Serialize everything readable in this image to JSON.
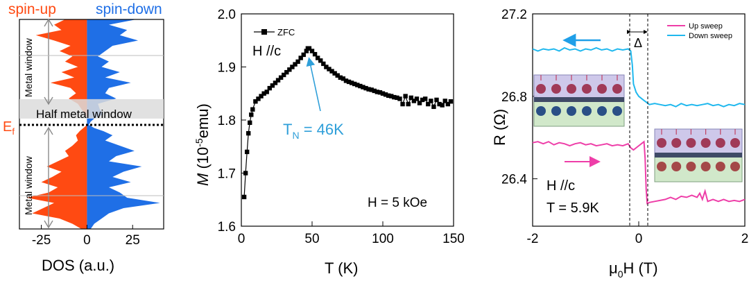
{
  "colors": {
    "spin_up": "#ff4a12",
    "spin_down": "#1f6fe6",
    "window_band": "#dcdcdc",
    "zfc_line": "#000000",
    "annotation_blue": "#2f9fd9",
    "up_sweep": "#ee3ea8",
    "down_sweep": "#1fb8ee",
    "arrow_pink": "#ee3ea8",
    "arrow_blue": "#1f9fe8"
  },
  "chart_data": [
    {
      "type": "area",
      "panel": "dos",
      "title_left": "spin-up",
      "title_right": "spin-down",
      "xlabel": "DOS (a.u.)",
      "ylabel": "",
      "xlim": [
        -37,
        42
      ],
      "xticks": [
        "-25",
        "0",
        "25"
      ],
      "xtick_values": [
        -25,
        0,
        25
      ],
      "fermi_label": "E",
      "fermi_sub": "f",
      "half_metal_label": "Half metal window",
      "metal_window_label": "Metal window",
      "energy_axis": "top = 1, bottom = -1, Fermi level at 0",
      "half_metal_window": [
        0.0,
        0.06
      ],
      "series": [
        {
          "name": "spin-up",
          "energy": [
            1.0,
            0.95,
            0.9,
            0.85,
            0.8,
            0.75,
            0.7,
            0.65,
            0.6,
            0.55,
            0.5,
            0.45,
            0.4,
            0.35,
            0.3,
            0.25,
            0.2,
            0.15,
            0.1,
            0.06,
            0.03,
            0.0,
            -0.03,
            -0.06,
            -0.1,
            -0.15,
            -0.2,
            -0.25,
            -0.3,
            -0.35,
            -0.4,
            -0.45,
            -0.5,
            -0.55,
            -0.6,
            -0.65,
            -0.7,
            -0.75,
            -0.8,
            -0.85,
            -0.9,
            -0.95,
            -1.0
          ],
          "dos": [
            -12,
            -18,
            -14,
            -28,
            -18,
            -9,
            -15,
            -8,
            -12,
            -5,
            -14,
            -7,
            -20,
            -9,
            -6,
            -10,
            -5,
            -3,
            -1,
            0,
            0,
            0,
            -2,
            -4,
            -6,
            -5,
            -8,
            -12,
            -10,
            -16,
            -22,
            -14,
            -19,
            -25,
            -16,
            -21,
            -33,
            -18,
            -24,
            -30,
            -15,
            -8,
            -3
          ]
        },
        {
          "name": "spin-down",
          "energy": [
            1.0,
            0.95,
            0.9,
            0.85,
            0.8,
            0.75,
            0.7,
            0.65,
            0.6,
            0.55,
            0.5,
            0.45,
            0.4,
            0.35,
            0.3,
            0.25,
            0.2,
            0.15,
            0.1,
            0.06,
            0.03,
            0.0,
            -0.03,
            -0.06,
            -0.1,
            -0.15,
            -0.2,
            -0.25,
            -0.3,
            -0.35,
            -0.4,
            -0.45,
            -0.5,
            -0.55,
            -0.6,
            -0.65,
            -0.7,
            -0.75,
            -0.8,
            -0.85,
            -0.9,
            -0.95,
            -1.0
          ],
          "dos": [
            27,
            12,
            22,
            18,
            28,
            14,
            10,
            6,
            12,
            8,
            18,
            10,
            24,
            12,
            10,
            16,
            6,
            7,
            9,
            4,
            2,
            1,
            4,
            9,
            14,
            10,
            18,
            26,
            16,
            12,
            30,
            20,
            14,
            24,
            12,
            18,
            22,
            40,
            20,
            12,
            8,
            4,
            2
          ]
        }
      ]
    },
    {
      "type": "line",
      "panel": "magnetization",
      "xlabel": "T (K)",
      "ylabel_italic": "M",
      "ylabel_rest": " (10",
      "ylabel_sup": "-5",
      "ylabel_end": "emu)",
      "xlim": [
        0,
        150
      ],
      "ylim": [
        1.6,
        2.0
      ],
      "xticks": [
        "0",
        "50",
        "100",
        "150"
      ],
      "xtick_values": [
        0,
        50,
        100,
        150
      ],
      "yticks": [
        "1.6",
        "1.7",
        "1.8",
        "1.9",
        "2.0"
      ],
      "ytick_values": [
        1.6,
        1.7,
        1.8,
        1.9,
        2.0
      ],
      "legend": "ZFC",
      "field_orientation": "H //c",
      "field_label": "H = 5 kOe",
      "annotation_main": "T",
      "annotation_sub": "N",
      "annotation_rest": " = 46K",
      "annotation_point": [
        47,
        1.925
      ],
      "series": [
        {
          "name": "ZFC",
          "x": [
            2,
            3,
            4,
            5,
            6,
            7,
            8,
            10,
            12,
            14,
            16,
            18,
            20,
            22,
            24,
            26,
            28,
            30,
            32,
            34,
            36,
            38,
            40,
            42,
            44,
            46,
            47,
            48,
            50,
            52,
            54,
            56,
            58,
            60,
            62,
            64,
            66,
            68,
            70,
            72,
            74,
            76,
            78,
            80,
            82,
            84,
            86,
            88,
            90,
            92,
            94,
            96,
            98,
            100,
            102,
            104,
            106,
            108,
            110,
            112,
            114,
            116,
            118,
            120,
            122,
            124,
            126,
            128,
            130,
            132,
            134,
            136,
            138,
            140,
            142,
            144,
            146,
            148
          ],
          "y": [
            1.655,
            1.7,
            1.74,
            1.775,
            1.795,
            1.81,
            1.82,
            1.835,
            1.84,
            1.845,
            1.85,
            1.853,
            1.86,
            1.865,
            1.87,
            1.875,
            1.88,
            1.885,
            1.89,
            1.895,
            1.9,
            1.905,
            1.91,
            1.917,
            1.923,
            1.93,
            1.935,
            1.935,
            1.93,
            1.924,
            1.917,
            1.912,
            1.906,
            1.9,
            1.896,
            1.892,
            1.888,
            1.884,
            1.88,
            1.878,
            1.874,
            1.872,
            1.87,
            1.868,
            1.866,
            1.864,
            1.862,
            1.86,
            1.858,
            1.857,
            1.855,
            1.853,
            1.852,
            1.85,
            1.848,
            1.846,
            1.845,
            1.843,
            1.842,
            1.84,
            1.83,
            1.845,
            1.83,
            1.842,
            1.836,
            1.84,
            1.832,
            1.838,
            1.84,
            1.83,
            1.836,
            1.825,
            1.838,
            1.83,
            1.828,
            1.836,
            1.83,
            1.835
          ]
        }
      ]
    },
    {
      "type": "line",
      "panel": "resistance",
      "xlabel_mu": "μ",
      "xlabel_sub": "0",
      "xlabel_rest": "H (T)",
      "ylabel": "R (Ω)",
      "xlim": [
        -2,
        2
      ],
      "ylim": [
        26.17,
        27.2
      ],
      "xticks": [
        "-2",
        "0",
        "2"
      ],
      "xtick_values": [
        -2,
        0,
        2
      ],
      "yticks": [
        "26.4",
        "26.8",
        "27.2"
      ],
      "ytick_values": [
        26.4,
        26.8,
        27.2
      ],
      "delta_label": "Δ",
      "dashed_lines_x": [
        -0.17,
        0.17
      ],
      "field_orientation": "H //c",
      "temperature_label": "T = 5.9K",
      "legend": [
        "Up sweep",
        "Down sweep"
      ],
      "series": [
        {
          "name": "Up sweep",
          "x": [
            -2,
            -1.9,
            -1.8,
            -1.7,
            -1.6,
            -1.5,
            -1.4,
            -1.3,
            -1.2,
            -1.1,
            -1.0,
            -0.9,
            -0.8,
            -0.7,
            -0.6,
            -0.5,
            -0.4,
            -0.3,
            -0.2,
            -0.15,
            -0.1,
            -0.05,
            0.0,
            0.05,
            0.1,
            0.12,
            0.14,
            0.16,
            0.2,
            0.3,
            0.4,
            0.5,
            0.6,
            0.7,
            0.8,
            0.9,
            1.0,
            1.1,
            1.15,
            1.2,
            1.25,
            1.3,
            1.4,
            1.5,
            1.6,
            1.7,
            1.8,
            1.9,
            2.0
          ],
          "y": [
            26.575,
            26.58,
            26.57,
            26.58,
            26.565,
            26.575,
            26.57,
            26.56,
            26.57,
            26.575,
            26.565,
            26.57,
            26.56,
            26.565,
            26.57,
            26.56,
            26.565,
            26.56,
            26.57,
            26.55,
            26.54,
            26.55,
            26.56,
            26.57,
            26.58,
            26.5,
            26.35,
            26.28,
            26.285,
            26.29,
            26.295,
            26.3,
            26.31,
            26.3,
            26.315,
            26.31,
            26.32,
            26.31,
            26.33,
            26.3,
            26.34,
            26.29,
            26.3,
            26.29,
            26.3,
            26.29,
            26.295,
            26.29,
            26.3
          ]
        },
        {
          "name": "Down sweep",
          "x": [
            2.0,
            1.9,
            1.8,
            1.7,
            1.6,
            1.5,
            1.4,
            1.3,
            1.2,
            1.1,
            1.0,
            0.9,
            0.8,
            0.7,
            0.6,
            0.5,
            0.4,
            0.3,
            0.2,
            0.15,
            0.1,
            0.05,
            0.0,
            -0.05,
            -0.1,
            -0.12,
            -0.15,
            -0.2,
            -0.3,
            -0.4,
            -0.5,
            -0.6,
            -0.7,
            -0.8,
            -0.9,
            -1.0,
            -1.1,
            -1.2,
            -1.3,
            -1.4,
            -1.5,
            -1.6,
            -1.7,
            -1.8,
            -1.9,
            -2.0
          ],
          "y": [
            26.76,
            26.765,
            26.755,
            26.76,
            26.75,
            26.76,
            26.755,
            26.765,
            26.76,
            26.755,
            26.76,
            26.755,
            26.765,
            26.75,
            26.76,
            26.755,
            26.76,
            26.765,
            26.76,
            26.77,
            26.78,
            26.79,
            26.8,
            26.82,
            26.86,
            26.95,
            27.02,
            27.03,
            27.025,
            27.03,
            27.02,
            27.03,
            27.025,
            27.035,
            27.025,
            27.03,
            27.02,
            27.03,
            27.025,
            27.035,
            27.02,
            27.03,
            27.025,
            27.03,
            27.02,
            27.03
          ]
        }
      ]
    }
  ]
}
